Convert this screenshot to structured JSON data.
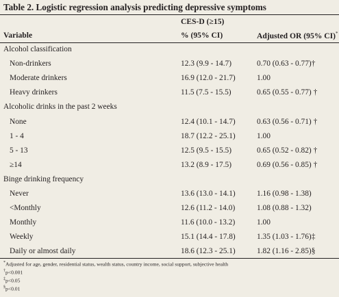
{
  "table": {
    "title": "Table 2. Logistic regression analysis predicting depressive symptoms",
    "group_header": "CES-D (≥15)",
    "col_variable": "Variable",
    "col_percent": "% (95% CI)",
    "col_or": "Adjusted OR (95% CI)",
    "col_or_mark": "*",
    "rows": [
      {
        "type": "section",
        "label": "Alcohol classification",
        "pct": "",
        "or": ""
      },
      {
        "type": "item",
        "label": "Non-drinkers",
        "pct": "12.3 (9.9 - 14.7)",
        "or": "0.70 (0.63 - 0.77)†"
      },
      {
        "type": "item",
        "label": "Moderate drinkers",
        "pct": "16.9 (12.0 - 21.7)",
        "or": "1.00"
      },
      {
        "type": "item",
        "label": "Heavy drinkers",
        "pct": "11.5 (7.5 - 15.5)",
        "or": "0.65 (0.55 - 0.77) †"
      },
      {
        "type": "section",
        "label": "Alcoholic drinks in the past 2 weeks",
        "pct": "",
        "or": ""
      },
      {
        "type": "item",
        "label": "None",
        "pct": "12.4 (10.1 - 14.7)",
        "or": "0.63 (0.56 - 0.71) †"
      },
      {
        "type": "item",
        "label": "1 - 4",
        "pct": "18.7 (12.2 - 25.1)",
        "or": "1.00"
      },
      {
        "type": "item",
        "label": "5 - 13",
        "pct": "12.5 (9.5 - 15.5)",
        "or": "0.65 (0.52 - 0.82) †"
      },
      {
        "type": "item",
        "label": "≥14",
        "pct": "13.2 (8.9 - 17.5)",
        "or": "0.69 (0.56 - 0.85) †"
      },
      {
        "type": "section",
        "label": "Binge drinking frequency",
        "pct": "",
        "or": ""
      },
      {
        "type": "item",
        "label": "Never",
        "pct": "13.6 (13.0 - 14.1)",
        "or": "1.16 (0.98 - 1.38)"
      },
      {
        "type": "item",
        "label": "<Monthly",
        "pct": "12.6 (11.2 - 14.0)",
        "or": "1.08 (0.88 - 1.32)"
      },
      {
        "type": "item",
        "label": "Monthly",
        "pct": "11.6 (10.0 - 13.2)",
        "or": "1.00"
      },
      {
        "type": "item",
        "label": "Weekly",
        "pct": "15.1 (14.4 - 17.8)",
        "or": "1.35 (1.03 - 1.76)‡"
      },
      {
        "type": "item",
        "label": "Daily or almost daily",
        "pct": "18.6 (12.3 - 25.1)",
        "or": "1.82 (1.16 - 2.85)§"
      }
    ],
    "footnotes": [
      {
        "mark": "*",
        "text": "Adjusted for age, gender, residential status, wealth status, country income, social support, subjective health"
      },
      {
        "mark": "†",
        "text": "p<0.001"
      },
      {
        "mark": "‡",
        "text": "p<0.05"
      },
      {
        "mark": "§",
        "text": "p<0.01"
      }
    ]
  }
}
